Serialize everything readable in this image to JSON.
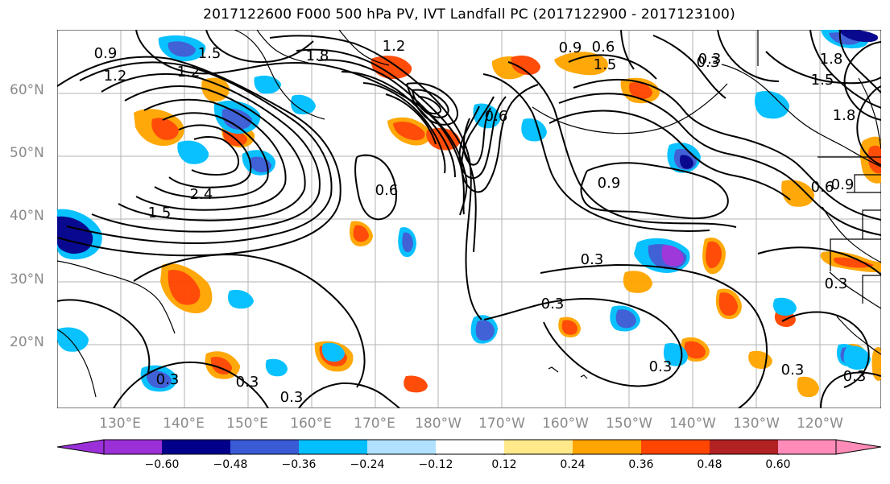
{
  "title": "2017122600 F000 500 hPa PV, IVT Landfall PC (2017122900 - 2017123100)",
  "latitude_labels": [
    "60°N",
    "50°N",
    "40°N",
    "30°N",
    "20°N"
  ],
  "longitude_labels": [
    "130°E",
    "140°E",
    "150°E",
    "160°E",
    "170°E",
    "180°W",
    "170°W",
    "160°W",
    "150°W",
    "140°W",
    "130°W",
    "120°W"
  ],
  "contour_labels": [
    "0.9",
    "1.2",
    "1.5",
    "1.8",
    "1.2",
    "1.2",
    "1.8",
    "1.5",
    "0.9",
    "0.6",
    "0.3",
    "1.8",
    "1.5",
    "0.6",
    "2.4",
    "1.5",
    "0.6",
    "0.9",
    "0.6",
    "0.9",
    "0.3",
    "0.3",
    "0.3",
    "0.3",
    "0.3",
    "0.3",
    "0.3",
    "0.3",
    "0.3",
    "0.3"
  ],
  "colorbar": {
    "ticks": [
      "−0.60",
      "−0.48",
      "−0.36",
      "−0.24",
      "−0.12",
      "0.12",
      "0.24",
      "0.36",
      "0.48",
      "0.60"
    ],
    "colors": [
      "#9b30d9",
      "#00008b",
      "#3a5bd6",
      "#00bfff",
      "#b0e2ff",
      "#ffffff",
      "#ffe98a",
      "#ffa500",
      "#ff4500",
      "#b22222",
      "#ff8cb8"
    ]
  },
  "colors": {
    "contour": "#000000",
    "grid": "#9a9a9a",
    "axis_labels": "#8a8a8a"
  }
}
